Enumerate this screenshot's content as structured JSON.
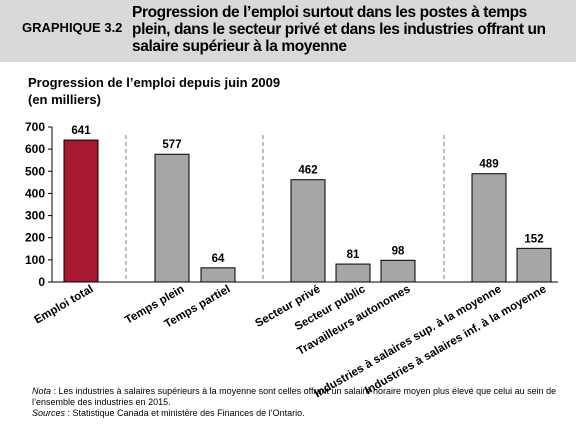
{
  "header": {
    "graph_number": "GRAPHIQUE 3.2",
    "title": "Progression de l’emploi surtout dans les postes à temps plein, dans le secteur privé et dans les industries offrant un salaire supérieur à la moyenne"
  },
  "chart_data": {
    "type": "bar",
    "title": "Progression de l’emploi depuis juin 2009",
    "subtitle": "(en milliers)",
    "categories": [
      "Emploi total",
      "Temps plein",
      "Temps partiel",
      "Secteur privé",
      "Secteur public",
      "Travailleurs autonomes",
      "Industries à salaires sup. à la moyenne",
      "Industries à salaires inf. à la moyenne"
    ],
    "values": [
      641,
      577,
      64,
      462,
      81,
      98,
      489,
      152
    ],
    "data_labels": [
      "641",
      "577",
      "64",
      "462",
      "81",
      "98",
      "489",
      "152"
    ],
    "y_ticks": [
      "0",
      "100",
      "200",
      "300",
      "400",
      "500",
      "600",
      "700"
    ],
    "ylim": [
      0,
      700
    ],
    "groups": [
      [
        0
      ],
      [
        1,
        2
      ],
      [
        3,
        4,
        5
      ],
      [
        6,
        7
      ]
    ],
    "colors": {
      "highlight": "#a6192e",
      "bar": "#a6a6a6",
      "header_band": "#d9d9d9"
    },
    "grid": false
  },
  "notes": {
    "nota_label": "Nota",
    "nota_text": " : Les industries à salaires supérieurs à la moyenne sont celles offrant un salaire horaire moyen plus élevé que celui au sein de l’ensemble des industries en 2015.",
    "sources_label": "Sources",
    "sources_text": " : Statistique Canada et ministère des Finances de l’Ontario."
  }
}
